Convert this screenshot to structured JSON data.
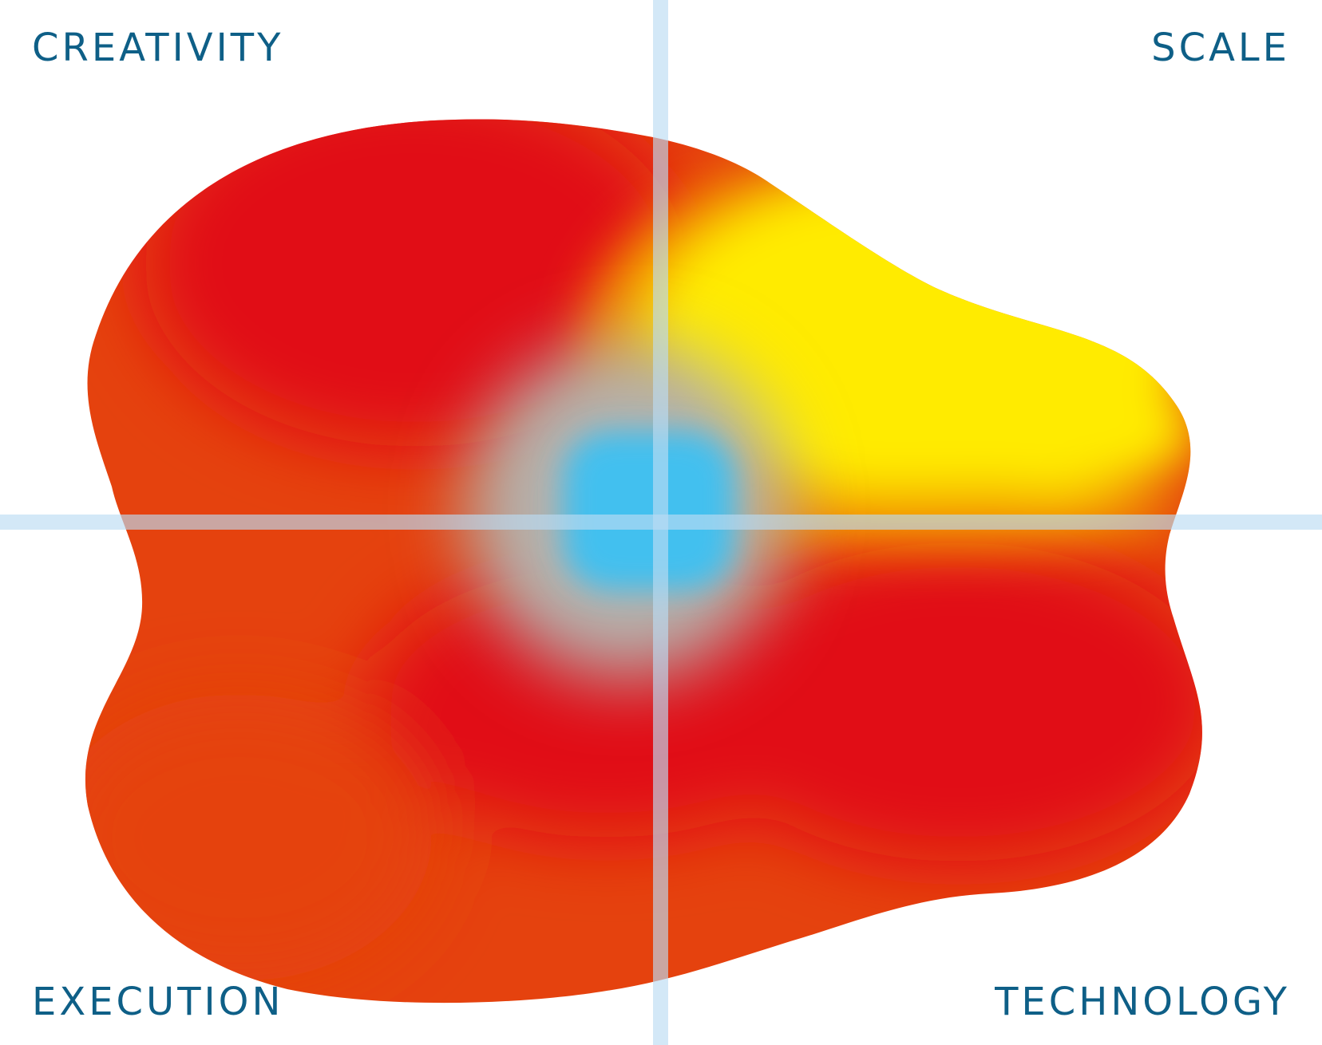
{
  "labels": {
    "top_left": "CREATIVITY",
    "top_right": "SCALE",
    "bottom_left": "EXECUTION",
    "bottom_right": "TECHNOLOGY"
  },
  "colors": {
    "label": "#0e5f87",
    "axis": "#bcdcf3",
    "red": "#e10915",
    "orange": "#e5420e",
    "yellow": "#ffeb00",
    "blue": "#42c0ef"
  }
}
